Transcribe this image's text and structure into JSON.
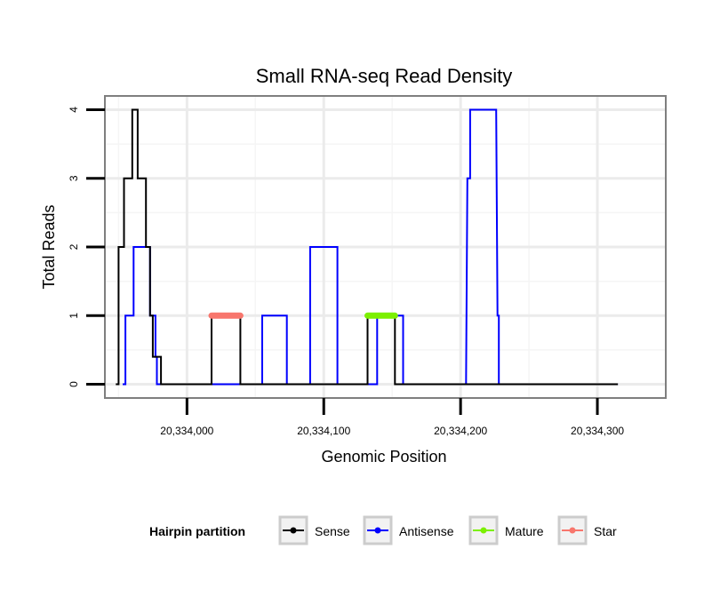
{
  "chart_data": {
    "type": "line",
    "title": "Small RNA-seq Read Density",
    "xlabel": "Genomic Position",
    "ylabel": "Total Reads",
    "xlim": [
      20333940,
      20334350
    ],
    "ylim": [
      -0.2,
      4.2
    ],
    "x_ticks": [
      20334000,
      20334100,
      20334200,
      20334300
    ],
    "x_tick_labels": [
      "20,334,000",
      "20,334,100",
      "20,334,200",
      "20,334,300"
    ],
    "y_ticks": [
      0,
      1,
      2,
      3,
      4
    ],
    "y_tick_labels": [
      "0",
      "1",
      "2",
      "3",
      "4"
    ],
    "grid": true,
    "legend": {
      "title": "Hairpin partition",
      "position": "bottom",
      "entries": [
        "Sense",
        "Antisense",
        "Mature",
        "Star"
      ]
    },
    "series": [
      {
        "name": "Antisense",
        "color": "#0000ff",
        "x": [
          20333953,
          20333955,
          20333955,
          20333961,
          20333961,
          20333973,
          20333973,
          20333977,
          20333977,
          20333978,
          20333978,
          20334055,
          20334055,
          20334073,
          20334073,
          20334090,
          20334090,
          20334110,
          20334110,
          20334139,
          20334139,
          20334158,
          20334158,
          20334204,
          20334205,
          20334207,
          20334207,
          20334226,
          20334227,
          20334228,
          20334228,
          20334315
        ],
        "y": [
          0,
          0,
          1,
          1,
          2,
          2,
          1,
          1,
          0.4,
          0.4,
          0,
          0,
          1,
          1,
          0,
          0,
          2,
          2,
          0,
          0,
          1,
          1,
          0,
          0,
          3,
          3,
          4,
          4,
          1,
          1,
          0,
          0
        ]
      },
      {
        "name": "Sense",
        "color": "#000000",
        "x": [
          20333948,
          20333950,
          20333950,
          20333954,
          20333954,
          20333960,
          20333960,
          20333964,
          20333964,
          20333970,
          20333970,
          20333973,
          20333973,
          20333975,
          20333975,
          20333981,
          20333981,
          20334018,
          20334018,
          20334039,
          20334039,
          20334132,
          20334132,
          20334152,
          20334152,
          20334315
        ],
        "y": [
          0,
          0,
          2,
          2,
          3,
          3,
          4,
          4,
          3,
          3,
          2,
          2,
          1,
          1,
          0.4,
          0.4,
          0,
          0,
          1,
          1,
          0,
          0,
          1,
          1,
          0,
          0
        ]
      },
      {
        "name": "Star",
        "color": "#f8766d",
        "x": [
          20334018,
          20334039
        ],
        "y": [
          1,
          1
        ]
      },
      {
        "name": "Mature",
        "color": "#7cf000",
        "x": [
          20334132,
          20334152
        ],
        "y": [
          1,
          1
        ]
      }
    ]
  }
}
